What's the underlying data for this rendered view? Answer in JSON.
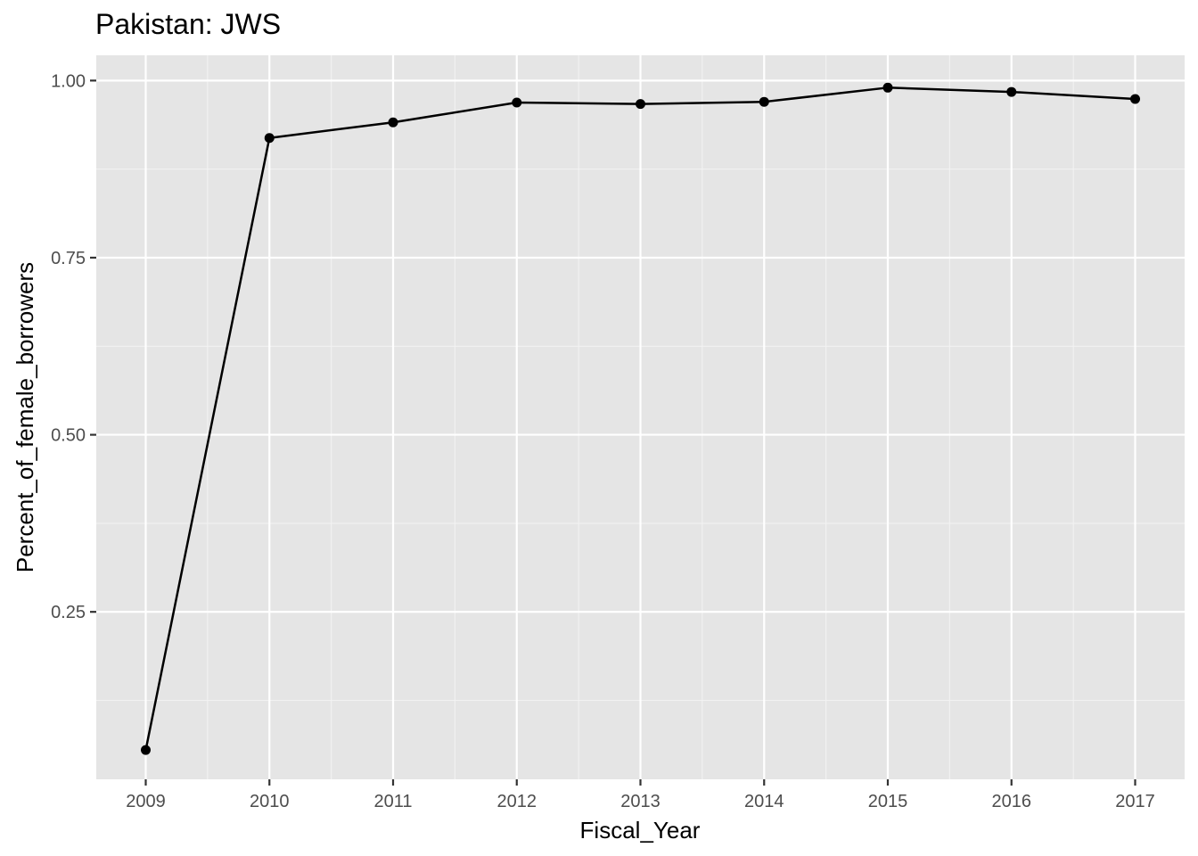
{
  "chart_data": {
    "type": "line",
    "title": "Pakistan:  JWS",
    "xlabel": "Fiscal_Year",
    "ylabel": "Percent_of_female_borrowers",
    "x": [
      2009,
      2010,
      2011,
      2012,
      2013,
      2014,
      2015,
      2016,
      2017
    ],
    "series": [
      {
        "values": [
          0.055,
          0.919,
          0.941,
          0.969,
          0.967,
          0.97,
          0.99,
          0.984,
          0.974
        ]
      }
    ],
    "x_ticks": [
      "2009",
      "2010",
      "2011",
      "2012",
      "2013",
      "2014",
      "2015",
      "2016",
      "2017"
    ],
    "y_ticks": [
      "0.25",
      "0.50",
      "0.75",
      "1.00"
    ],
    "xlim": [
      2008.6,
      2017.4
    ],
    "ylim": [
      0.0136,
      1.0357
    ],
    "grid": true,
    "legend": "none",
    "colors": {
      "panel_background": "#e5e5e5",
      "grid_major": "#ffffff",
      "grid_minor": "#f2f2f2",
      "line": "#000000",
      "point": "#000000",
      "tick_label": "#4d4d4d",
      "tick_mark": "#333333"
    }
  }
}
